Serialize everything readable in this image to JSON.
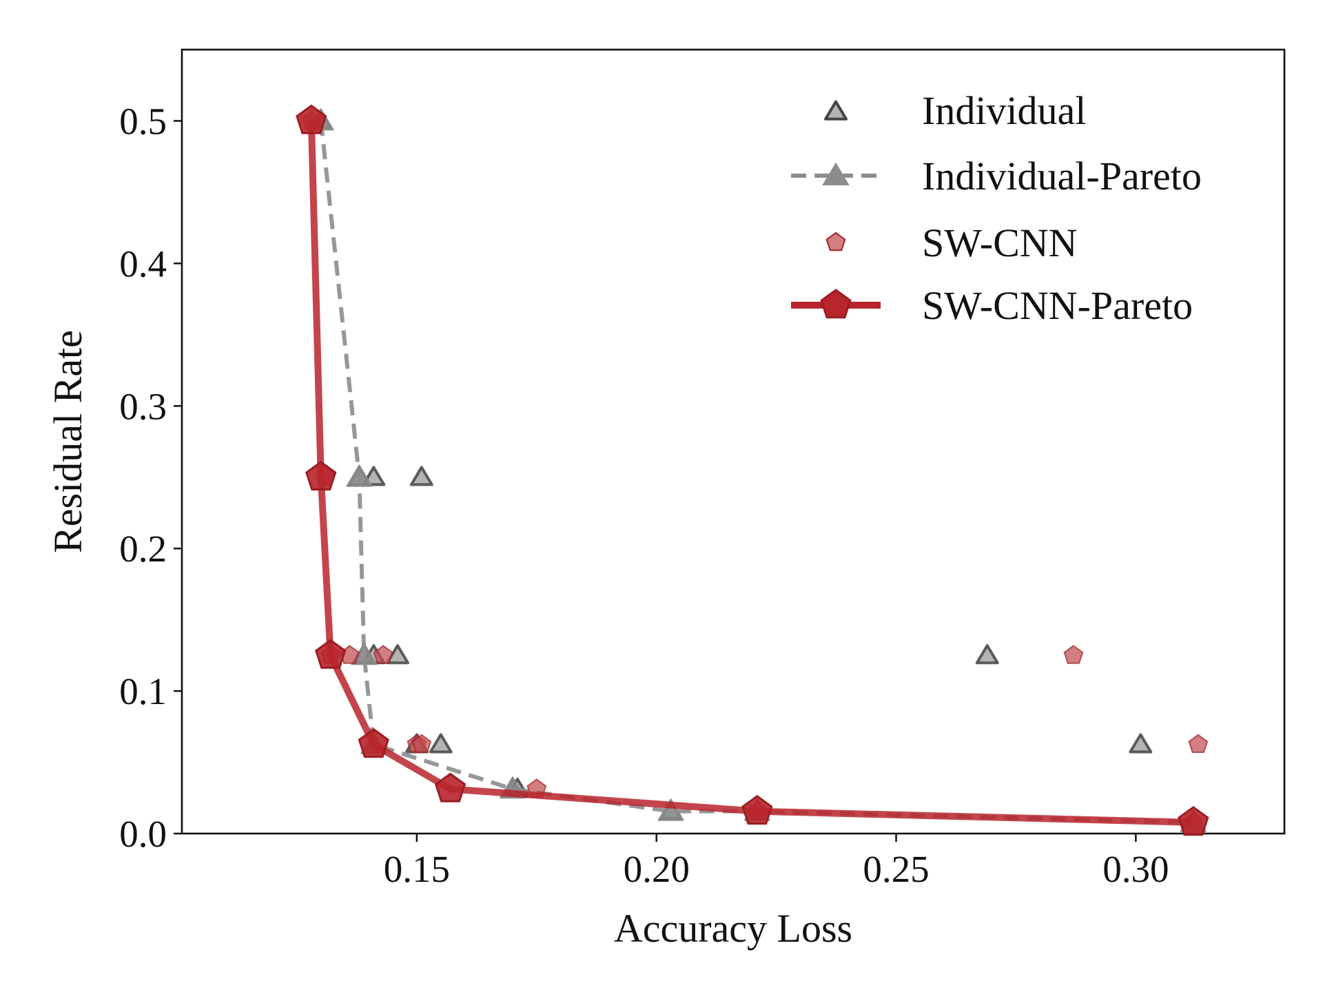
{
  "chart_data": {
    "type": "scatter",
    "xlabel": "Accuracy Loss",
    "ylabel": "Residual Rate",
    "xlim": [
      0.101,
      0.331
    ],
    "ylim": [
      0.0,
      0.55
    ],
    "x_ticks": [
      0.15,
      0.2,
      0.25,
      0.3
    ],
    "x_tick_labels": [
      "0.15",
      "0.20",
      "0.25",
      "0.30"
    ],
    "y_ticks": [
      0.0,
      0.1,
      0.2,
      0.3,
      0.4,
      0.5
    ],
    "y_tick_labels": [
      "0.0",
      "0.1",
      "0.2",
      "0.3",
      "0.4",
      "0.5"
    ],
    "grid": false,
    "legend_position": "top-right",
    "series": [
      {
        "name": "Individual",
        "kind": "scatter",
        "marker": "triangle",
        "color": "#444444",
        "points": [
          {
            "x": 0.13,
            "y": 0.5
          },
          {
            "x": 0.138,
            "y": 0.25
          },
          {
            "x": 0.141,
            "y": 0.25
          },
          {
            "x": 0.151,
            "y": 0.25
          },
          {
            "x": 0.139,
            "y": 0.125
          },
          {
            "x": 0.141,
            "y": 0.125
          },
          {
            "x": 0.146,
            "y": 0.125
          },
          {
            "x": 0.269,
            "y": 0.125
          },
          {
            "x": 0.141,
            "y": 0.0625
          },
          {
            "x": 0.15,
            "y": 0.0625
          },
          {
            "x": 0.155,
            "y": 0.0625
          },
          {
            "x": 0.301,
            "y": 0.0625
          },
          {
            "x": 0.17,
            "y": 0.03125
          },
          {
            "x": 0.171,
            "y": 0.03125
          },
          {
            "x": 0.203,
            "y": 0.015625
          }
        ]
      },
      {
        "name": "Individual-Pareto",
        "kind": "line",
        "marker": "triangle",
        "color": "#8c8c8c",
        "dashed": true,
        "points": [
          {
            "x": 0.13,
            "y": 0.5
          },
          {
            "x": 0.138,
            "y": 0.25
          },
          {
            "x": 0.139,
            "y": 0.125
          },
          {
            "x": 0.141,
            "y": 0.0625
          },
          {
            "x": 0.17,
            "y": 0.03125
          },
          {
            "x": 0.203,
            "y": 0.015625
          },
          {
            "x": 0.221,
            "y": 0.015625
          },
          {
            "x": 0.312,
            "y": 0.0078125
          }
        ]
      },
      {
        "name": "SW-CNN",
        "kind": "scatter",
        "marker": "pentagon",
        "color": "#c0484d",
        "points": [
          {
            "x": 0.128,
            "y": 0.5
          },
          {
            "x": 0.131,
            "y": 0.25
          },
          {
            "x": 0.132,
            "y": 0.125
          },
          {
            "x": 0.136,
            "y": 0.125
          },
          {
            "x": 0.143,
            "y": 0.125
          },
          {
            "x": 0.287,
            "y": 0.125
          },
          {
            "x": 0.15,
            "y": 0.0625
          },
          {
            "x": 0.151,
            "y": 0.0625
          },
          {
            "x": 0.313,
            "y": 0.0625
          },
          {
            "x": 0.175,
            "y": 0.03125
          },
          {
            "x": 0.221,
            "y": 0.015625
          },
          {
            "x": 0.312,
            "y": 0.0078125
          }
        ]
      },
      {
        "name": "SW-CNN-Pareto",
        "kind": "line",
        "marker": "pentagon",
        "color": "#b8252b",
        "dashed": false,
        "points": [
          {
            "x": 0.128,
            "y": 0.5
          },
          {
            "x": 0.13,
            "y": 0.25
          },
          {
            "x": 0.132,
            "y": 0.125
          },
          {
            "x": 0.141,
            "y": 0.0625
          },
          {
            "x": 0.157,
            "y": 0.03125
          },
          {
            "x": 0.221,
            "y": 0.015625
          },
          {
            "x": 0.312,
            "y": 0.0078125
          }
        ]
      }
    ]
  }
}
